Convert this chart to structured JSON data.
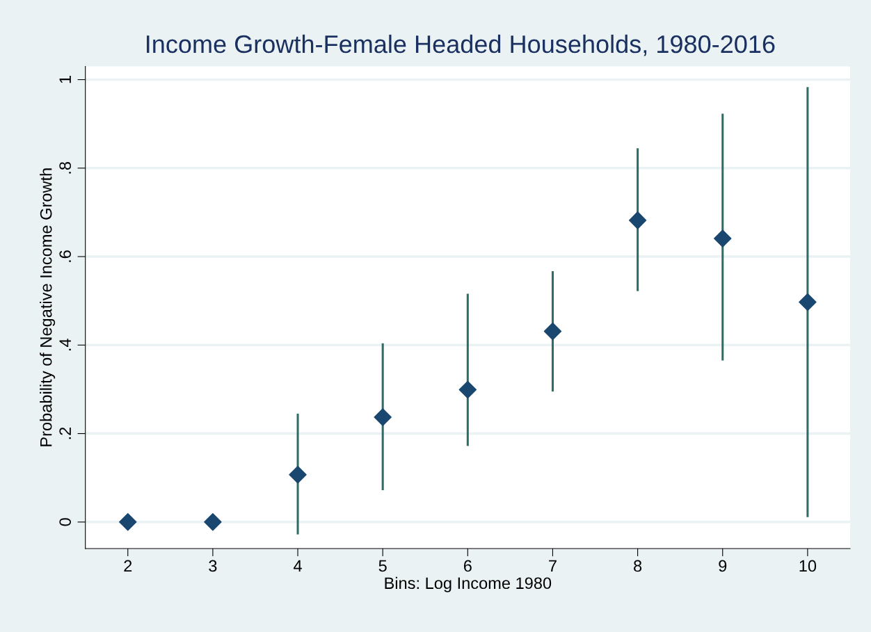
{
  "chart_data": {
    "type": "scatter",
    "title": "Income Growth-Female Headed Households, 1980-2016",
    "xlabel": "Bins: Log Income 1980",
    "ylabel": "Probability of Negative Income Growth",
    "x": [
      2,
      3,
      4,
      5,
      6,
      7,
      8,
      9,
      10
    ],
    "series": [
      {
        "color": "#1a476f",
        "values": [
          0,
          0,
          0.107,
          0.237,
          0.299,
          0.431,
          0.682,
          0.641,
          0.497
        ],
        "errors": [
          null,
          null,
          [
            -0.028,
            0.245
          ],
          [
            0.072,
            0.404
          ],
          [
            0.172,
            0.516
          ],
          [
            0.295,
            0.567
          ],
          [
            0.522,
            0.845
          ],
          [
            0.365,
            0.923
          ],
          [
            0.011,
            0.983
          ]
        ]
      }
    ],
    "marker": "diamond",
    "grid": "y",
    "xlim": [
      1.5,
      10.5
    ],
    "xticks": [
      2,
      3,
      4,
      5,
      6,
      7,
      8,
      9,
      10
    ],
    "ylim": [
      -0.06,
      1.03
    ],
    "yticks": [
      0,
      {
        "value": 0.2,
        "label": ".2"
      },
      {
        "value": 0.4,
        "label": ".4"
      },
      {
        "value": 0.6,
        "label": ".6"
      },
      {
        "value": 0.8,
        "label": ".8"
      },
      1
    ]
  }
}
